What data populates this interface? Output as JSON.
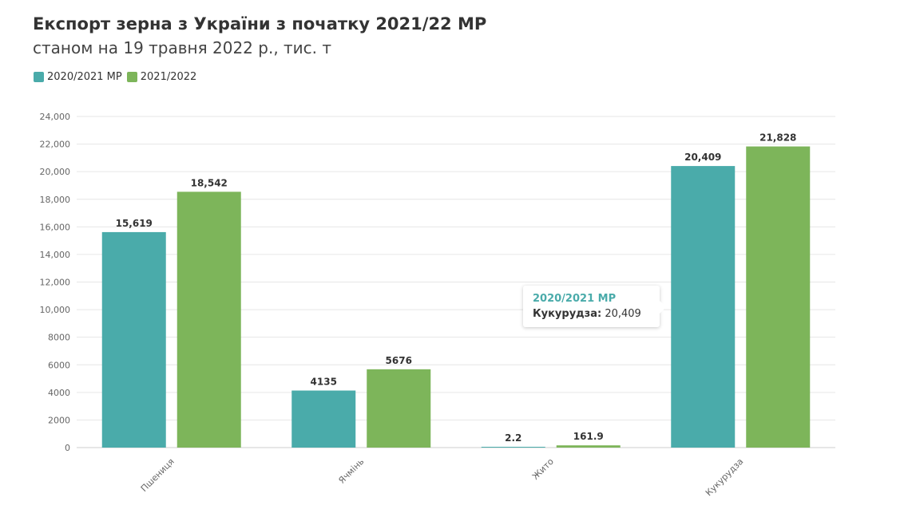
{
  "title": "Експорт зерна з України з початку 2021/22 МР",
  "subtitle": "станом на 19 травня 2022 р., тис. т",
  "colors": {
    "series1": "#4aabaa",
    "series2": "#7db55a",
    "grid": "#e6e6e6",
    "axis_text": "#666666"
  },
  "tooltip": {
    "series": "2020/2021 МР",
    "category": "Кукурудза:",
    "value": "20,409"
  },
  "chart_data": {
    "type": "bar",
    "categories": [
      "Пшениця",
      "Ячмінь",
      "Жито",
      "Кукурудза"
    ],
    "series": [
      {
        "name": "2020/2021 МР",
        "values": [
          15619,
          4135,
          2.2,
          20409
        ],
        "labels": [
          "15,619",
          "4135",
          "2.2",
          "20,409"
        ]
      },
      {
        "name": "2021/2022",
        "values": [
          18542,
          5676,
          161.9,
          21828
        ],
        "labels": [
          "18,542",
          "5676",
          "161.9",
          "21,828"
        ]
      }
    ],
    "ylim": [
      0,
      24000
    ],
    "yticks": [
      0,
      2000,
      4000,
      6000,
      8000,
      10000,
      12000,
      14000,
      16000,
      18000,
      20000,
      22000,
      24000
    ],
    "ytick_labels": [
      "0",
      "2000",
      "4000",
      "6000",
      "8000",
      "10,000",
      "12,000",
      "14,000",
      "16,000",
      "18,000",
      "20,000",
      "22,000",
      "24,000"
    ],
    "grid": true,
    "legend": "top-left"
  }
}
